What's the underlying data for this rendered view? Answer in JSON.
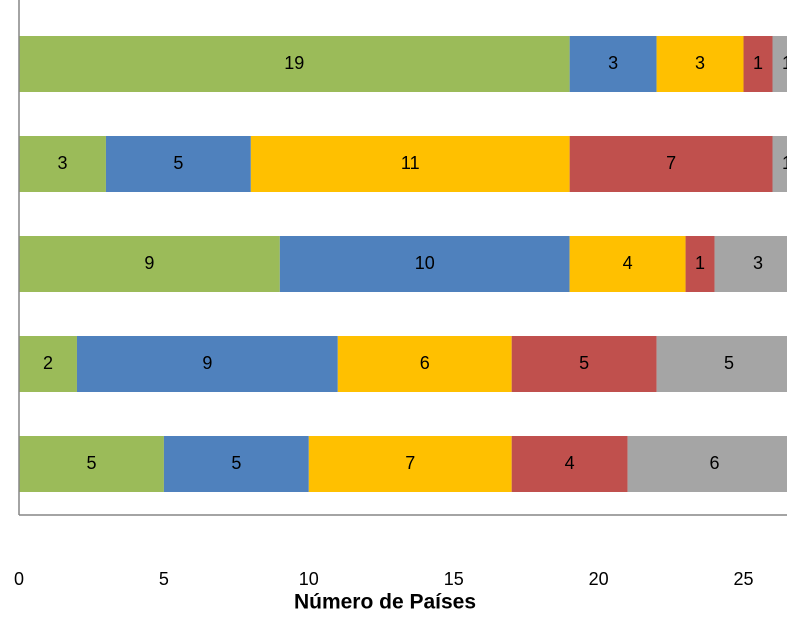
{
  "chart_data": {
    "type": "stacked_barh",
    "xlabel": "Número de Países",
    "xlim": [
      0,
      26.5
    ],
    "xticks": [
      0,
      5,
      10,
      15,
      20,
      25
    ],
    "series": [
      {
        "color": "#9bbb59",
        "values": [
          19,
          3,
          9,
          2,
          5
        ]
      },
      {
        "color": "#4f81bd",
        "values": [
          3,
          5,
          10,
          9,
          5
        ]
      },
      {
        "color": "#ffc000",
        "values": [
          3,
          11,
          4,
          6,
          7
        ]
      },
      {
        "color": "#c0504d",
        "values": [
          1,
          7,
          1,
          5,
          4
        ]
      },
      {
        "color": "#a5a5a5",
        "values": [
          1,
          1,
          3,
          5,
          6
        ]
      }
    ]
  }
}
